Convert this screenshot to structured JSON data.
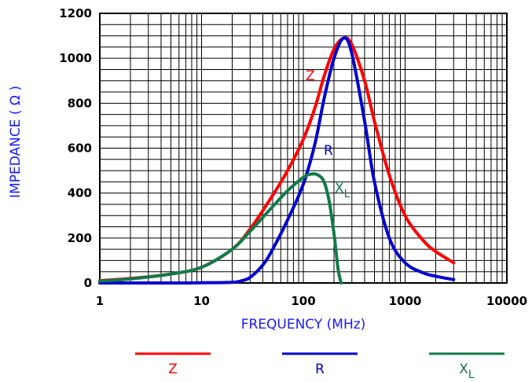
{
  "chart_data": {
    "type": "line",
    "x_scale": "log",
    "xlabel": "FREQUENCY  (MHz)",
    "ylabel": "IMPEDANCE  ( Ω )",
    "xlim": [
      1,
      10000
    ],
    "ylim": [
      0,
      1200
    ],
    "x_ticks": [
      "1",
      "10",
      "100",
      "1000",
      "10000"
    ],
    "y_ticks": [
      "0",
      "200",
      "400",
      "600",
      "800",
      "1000",
      "1200"
    ],
    "grid": true,
    "legend_position": "bottom",
    "series": [
      {
        "name": "Z",
        "color": "#ff0000",
        "x": [
          1,
          2,
          5,
          10,
          20,
          30,
          50,
          70,
          100,
          130,
          160,
          200,
          250,
          300,
          400,
          500,
          700,
          1000,
          1500,
          2000,
          3000
        ],
        "y": [
          10,
          20,
          40,
          70,
          150,
          240,
          390,
          500,
          640,
          780,
          920,
          1040,
          1090,
          1060,
          900,
          720,
          480,
          300,
          190,
          140,
          90
        ]
      },
      {
        "name": "R",
        "color": "#0000cc",
        "x": [
          1,
          5,
          10,
          20,
          25,
          30,
          40,
          50,
          70,
          100,
          130,
          160,
          200,
          250,
          300,
          400,
          500,
          700,
          1000,
          1500,
          2000,
          3000
        ],
        "y": [
          0,
          0,
          1,
          3,
          10,
          25,
          80,
          150,
          280,
          440,
          620,
          820,
          1000,
          1090,
          1020,
          720,
          450,
          200,
          90,
          45,
          30,
          15
        ]
      },
      {
        "name": "X_L",
        "color": "#127a4a",
        "x": [
          1,
          2,
          5,
          10,
          20,
          30,
          50,
          70,
          100,
          120,
          140,
          160,
          180,
          200,
          220,
          235
        ],
        "y": [
          8,
          18,
          40,
          70,
          150,
          230,
          340,
          410,
          470,
          485,
          480,
          450,
          360,
          220,
          60,
          0
        ]
      }
    ]
  },
  "labels": {
    "Z": "Z",
    "R": "R",
    "X_main": "X",
    "X_sub": "L"
  },
  "legend": [
    {
      "key": "Z",
      "main": "Z",
      "sub": "",
      "color": "#ff0000"
    },
    {
      "key": "R",
      "main": "R",
      "sub": "",
      "color": "#0000cc"
    },
    {
      "key": "X_L",
      "main": "X",
      "sub": "L",
      "color": "#127a4a"
    }
  ]
}
